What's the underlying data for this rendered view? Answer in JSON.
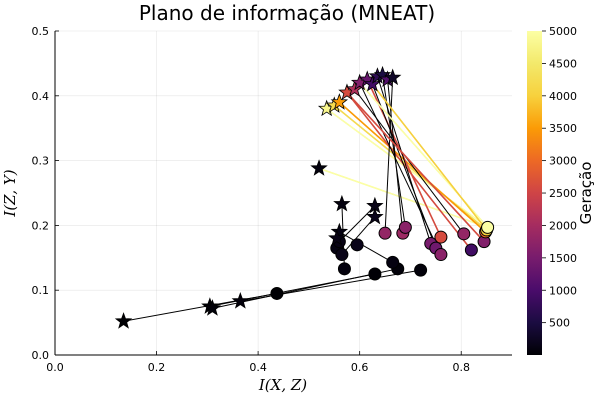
{
  "chart_data": {
    "type": "scatter",
    "title": "Plano de informação (MNEAT)",
    "xlabel": "I(X, Z)",
    "ylabel": "I(Z, Y)",
    "xlim": [
      0,
      0.9
    ],
    "ylim": [
      0,
      0.5
    ],
    "xticks": [
      0.0,
      0.2,
      0.4,
      0.6,
      0.8
    ],
    "yticks": [
      0.0,
      0.1,
      0.2,
      0.3,
      0.4,
      0.5
    ],
    "xtick_labels": [
      "0.0",
      "0.2",
      "0.4",
      "0.6",
      "0.8"
    ],
    "ytick_labels": [
      "0.0",
      "0.1",
      "0.2",
      "0.3",
      "0.4",
      "0.5"
    ],
    "grid": true,
    "colorbar": {
      "label": "Geração",
      "range": [
        1,
        5000
      ],
      "ticks": [
        500,
        1000,
        1500,
        2000,
        2500,
        3000,
        3500,
        4000,
        4500,
        5000
      ],
      "tick_labels": [
        "500",
        "1000",
        "1500",
        "2000",
        "2500",
        "3000",
        "3500",
        "4000",
        "4500",
        "5000"
      ],
      "colormap": "inferno"
    },
    "series": [
      {
        "marker": "star",
        "points": [
          {
            "x": 0.135,
            "y": 0.052,
            "gen": 1
          },
          {
            "x": 0.305,
            "y": 0.075,
            "gen": 20
          },
          {
            "x": 0.31,
            "y": 0.072,
            "gen": 40
          },
          {
            "x": 0.365,
            "y": 0.083,
            "gen": 60
          },
          {
            "x": 0.52,
            "y": 0.288,
            "gen": 80
          },
          {
            "x": 0.565,
            "y": 0.233,
            "gen": 100
          },
          {
            "x": 0.56,
            "y": 0.19,
            "gen": 120
          },
          {
            "x": 0.555,
            "y": 0.18,
            "gen": 140
          },
          {
            "x": 0.63,
            "y": 0.23,
            "gen": 160
          },
          {
            "x": 0.63,
            "y": 0.213,
            "gen": 180
          },
          {
            "x": 0.535,
            "y": 0.38,
            "gen": 4800
          },
          {
            "x": 0.55,
            "y": 0.385,
            "gen": 4200
          },
          {
            "x": 0.56,
            "y": 0.39,
            "gen": 3500
          },
          {
            "x": 0.575,
            "y": 0.405,
            "gen": 2600
          },
          {
            "x": 0.59,
            "y": 0.41,
            "gen": 2100
          },
          {
            "x": 0.6,
            "y": 0.42,
            "gen": 1600
          },
          {
            "x": 0.615,
            "y": 0.425,
            "gen": 1300
          },
          {
            "x": 0.625,
            "y": 0.418,
            "gen": 900
          },
          {
            "x": 0.635,
            "y": 0.43,
            "gen": 700
          },
          {
            "x": 0.645,
            "y": 0.432,
            "gen": 500
          },
          {
            "x": 0.655,
            "y": 0.425,
            "gen": 1100
          },
          {
            "x": 0.665,
            "y": 0.428,
            "gen": 300
          }
        ]
      },
      {
        "marker": "circle",
        "points": [
          {
            "x": 0.437,
            "y": 0.095,
            "gen": 1
          },
          {
            "x": 0.63,
            "y": 0.125,
            "gen": 20
          },
          {
            "x": 0.675,
            "y": 0.133,
            "gen": 40
          },
          {
            "x": 0.72,
            "y": 0.131,
            "gen": 60
          },
          {
            "x": 0.57,
            "y": 0.133,
            "gen": 80
          },
          {
            "x": 0.665,
            "y": 0.143,
            "gen": 100
          },
          {
            "x": 0.555,
            "y": 0.165,
            "gen": 120
          },
          {
            "x": 0.56,
            "y": 0.175,
            "gen": 140
          },
          {
            "x": 0.565,
            "y": 0.155,
            "gen": 160
          },
          {
            "x": 0.595,
            "y": 0.17,
            "gen": 180
          },
          {
            "x": 0.65,
            "y": 0.188,
            "gen": 1800
          },
          {
            "x": 0.685,
            "y": 0.188,
            "gen": 1900
          },
          {
            "x": 0.69,
            "y": 0.197,
            "gen": 1700
          },
          {
            "x": 0.74,
            "y": 0.172,
            "gen": 1500
          },
          {
            "x": 0.75,
            "y": 0.165,
            "gen": 1400
          },
          {
            "x": 0.76,
            "y": 0.182,
            "gen": 2600
          },
          {
            "x": 0.76,
            "y": 0.155,
            "gen": 1700
          },
          {
            "x": 0.805,
            "y": 0.187,
            "gen": 1800
          },
          {
            "x": 0.82,
            "y": 0.162,
            "gen": 900
          },
          {
            "x": 0.845,
            "y": 0.175,
            "gen": 1600
          },
          {
            "x": 0.848,
            "y": 0.19,
            "gen": 3000
          },
          {
            "x": 0.85,
            "y": 0.193,
            "gen": 4000
          },
          {
            "x": 0.852,
            "y": 0.197,
            "gen": 5000
          }
        ]
      }
    ],
    "connectors": [
      [
        0,
        0
      ],
      [
        1,
        1
      ],
      [
        2,
        2
      ],
      [
        3,
        3
      ],
      [
        4,
        22
      ],
      [
        5,
        4
      ],
      [
        6,
        5
      ],
      [
        7,
        6
      ],
      [
        8,
        7
      ],
      [
        9,
        8
      ],
      [
        10,
        22
      ],
      [
        11,
        21
      ],
      [
        12,
        20
      ],
      [
        13,
        18
      ],
      [
        14,
        17
      ],
      [
        15,
        16
      ],
      [
        16,
        15
      ],
      [
        17,
        14
      ],
      [
        18,
        13
      ],
      [
        19,
        12
      ],
      [
        20,
        11
      ],
      [
        21,
        10
      ],
      [
        13,
        19
      ],
      [
        15,
        22
      ],
      [
        17,
        21
      ]
    ]
  }
}
